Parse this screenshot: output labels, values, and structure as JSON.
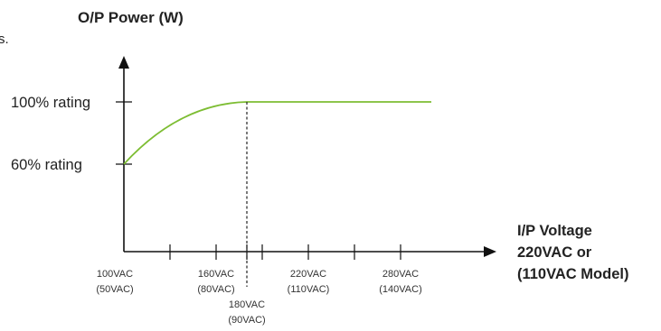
{
  "stray_char": "s.",
  "chart_data": {
    "type": "line",
    "ylabel": "O/P Power (W)",
    "xlabel_lines": [
      "I/P Voltage",
      "220VAC or",
      "(110VAC Model)"
    ],
    "y_levels": [
      {
        "label": "100% rating",
        "value": 100
      },
      {
        "label": "60% rating",
        "value": 60
      }
    ],
    "x_ticks": [
      {
        "value": 100,
        "label": [
          "100VAC",
          "(50VAC)"
        ],
        "row": "upper"
      },
      {
        "value": 160,
        "label": [
          "160VAC",
          "(80VAC)"
        ],
        "row": "upper"
      },
      {
        "value": 180,
        "label": [
          "180VAC",
          "(90VAC)"
        ],
        "row": "lower"
      },
      {
        "value": 220,
        "label": [
          "220VAC",
          "(110VAC)"
        ],
        "row": "upper"
      },
      {
        "value": 280,
        "label": [
          "280VAC",
          "(140VAC)"
        ],
        "row": "upper"
      }
    ],
    "minor_x_ticks": [
      130,
      190,
      250
    ],
    "series": [
      {
        "color": "#7dbd33",
        "points": [
          {
            "x": 100,
            "y": 60
          },
          {
            "x": 180,
            "y": 100
          },
          {
            "x": 300,
            "y": 100
          }
        ],
        "curve_segment": [
          100,
          180
        ]
      }
    ],
    "knee_x": 180,
    "grid": false
  }
}
